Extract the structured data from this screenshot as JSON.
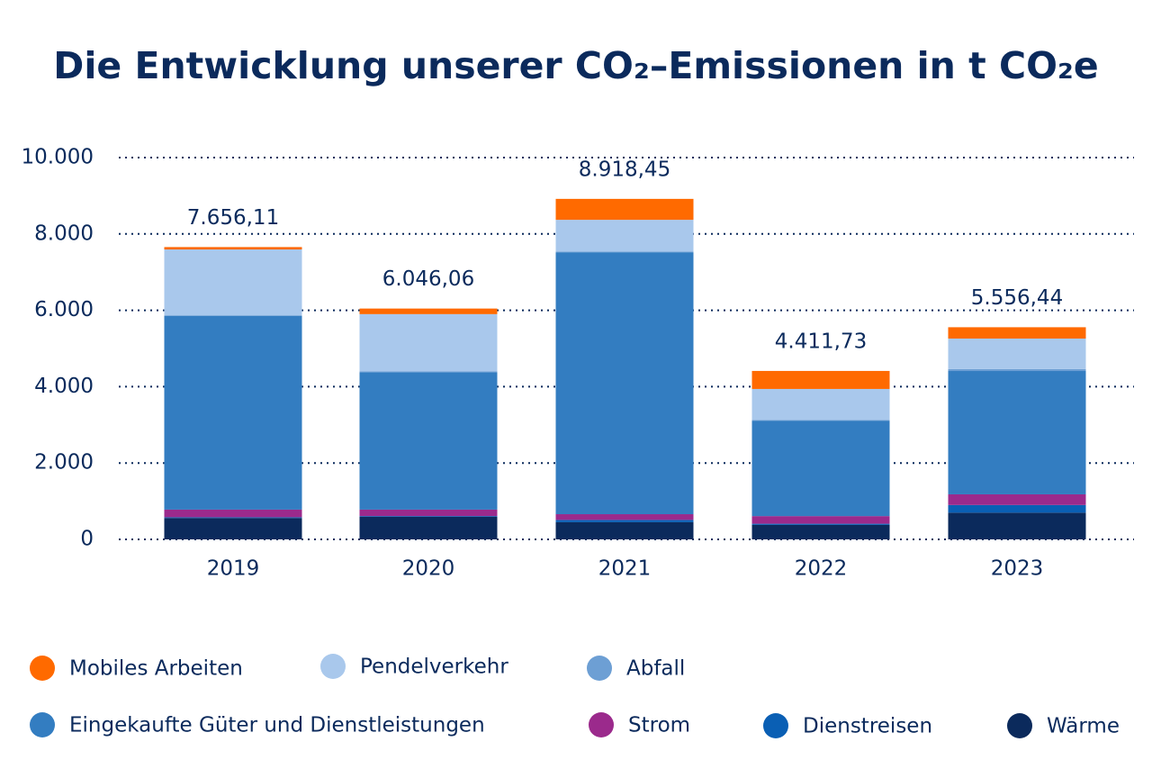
{
  "chart_data": {
    "type": "stacked-bar",
    "title": "Die Entwicklung unserer CO₂–Emissionen in t CO₂e",
    "categories": [
      "2019",
      "2020",
      "2021",
      "2022",
      "2023"
    ],
    "series": [
      {
        "name": "Wärme",
        "color": "#0b2a5c",
        "values": [
          560,
          590,
          450,
          380,
          700
        ]
      },
      {
        "name": "Dienstreisen",
        "color": "#0a5fb4",
        "values": [
          20,
          20,
          60,
          30,
          200
        ]
      },
      {
        "name": "Strom",
        "color": "#9b2a8c",
        "values": [
          200,
          170,
          150,
          200,
          280
        ]
      },
      {
        "name": "Eingekaufte Güter und Dienstleistungen",
        "color": "#337dc1",
        "values": [
          5070,
          3600,
          6860,
          2500,
          3230
        ]
      },
      {
        "name": "Abfall",
        "color": "#6d9fd4",
        "values": [
          20,
          20,
          20,
          20,
          50
        ]
      },
      {
        "name": "Pendelverkehr",
        "color": "#a9c8ec",
        "values": [
          1724,
          1500,
          830,
          810,
          800
        ]
      },
      {
        "name": "Mobiles Arbeiten",
        "color": "#ff6a00",
        "values": [
          62.11,
          146.06,
          548.45,
          471.73,
          296.44
        ]
      }
    ],
    "totals": [
      7656.11,
      6046.06,
      8918.45,
      4411.73,
      5556.44
    ],
    "total_labels": [
      "7.656,11",
      "6.046,06",
      "8.918,45",
      "4.411,73",
      "5.556,44"
    ],
    "ylim": [
      0,
      10000
    ],
    "yticks": [
      0,
      {
        "value": 2000,
        "label": "2.000"
      },
      {
        "value": 4000,
        "label": "4.000"
      },
      {
        "value": 6000,
        "label": "6.000"
      },
      {
        "value": 8000,
        "label": "8.000"
      },
      {
        "value": 10000,
        "label": "10.000"
      }
    ],
    "grid": true
  }
}
